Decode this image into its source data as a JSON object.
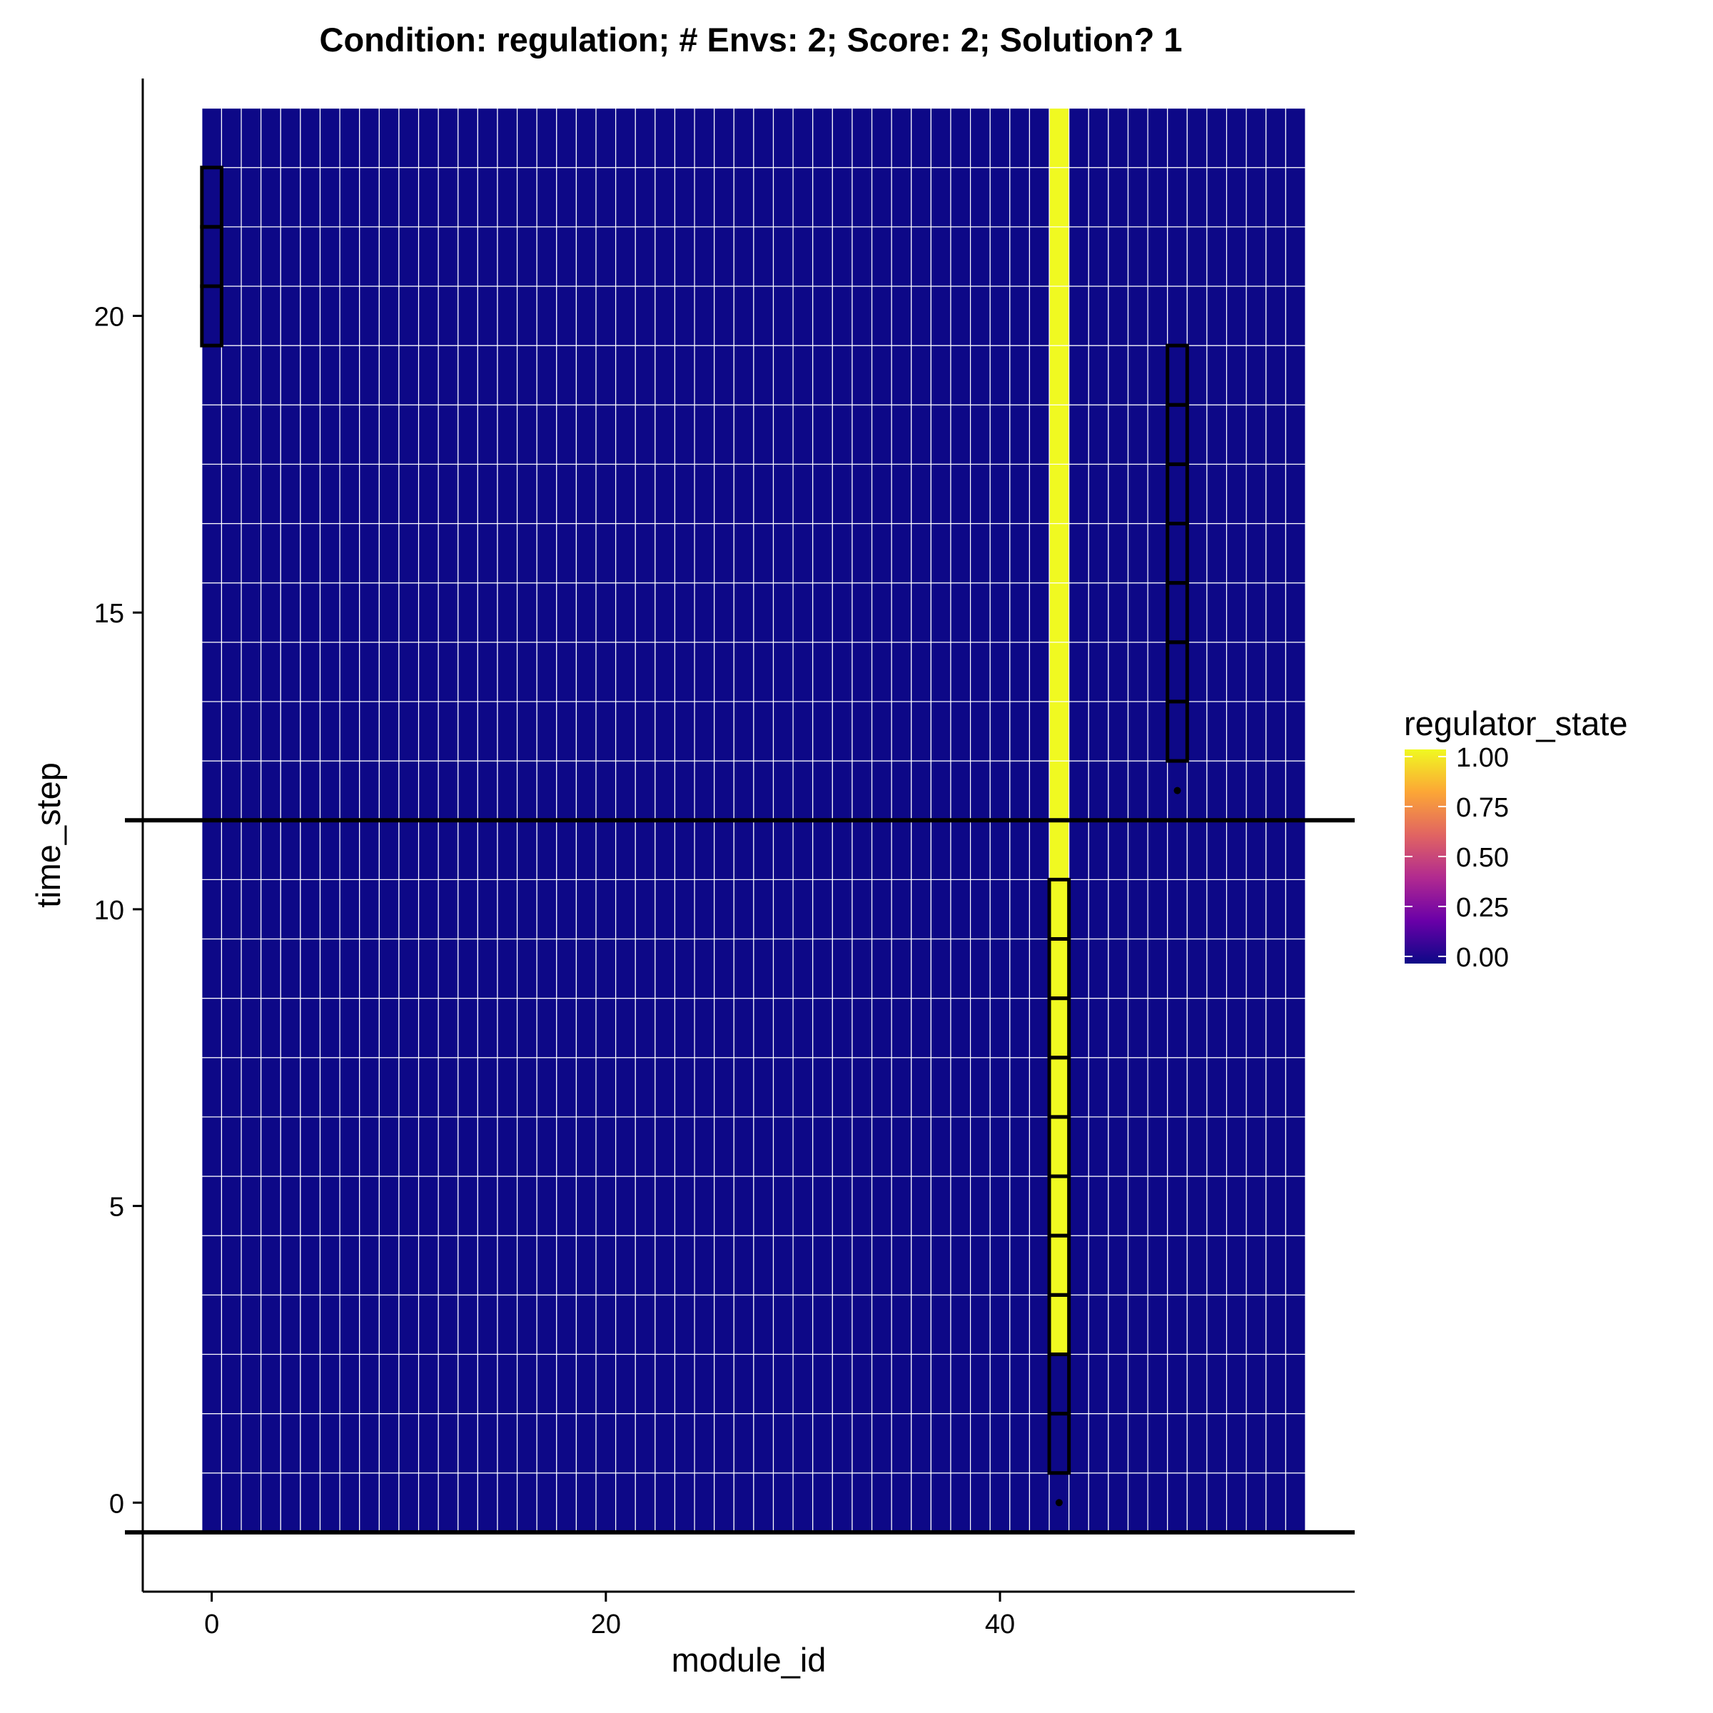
{
  "chart_data": {
    "type": "heatmap",
    "title": "Condition: regulation; # Envs: 2; Score: 2; Solution? 1",
    "xlabel": "module_id",
    "ylabel": "time_step",
    "xlim": [
      -3.5,
      58
    ],
    "ylim": [
      -1.5,
      24
    ],
    "x_ticks": [
      0,
      20,
      40
    ],
    "y_ticks": [
      0,
      5,
      10,
      15,
      20
    ],
    "module_ids": [
      0,
      55
    ],
    "time_steps": [
      0,
      23
    ],
    "default_state": 0,
    "active_cells": [
      {
        "module_id": 43,
        "time_steps": [
          3,
          23
        ],
        "regulator_state": 1
      }
    ],
    "highlighted_cells": [
      {
        "module_id": 0,
        "time_steps": [
          20,
          22
        ]
      },
      {
        "module_id": 49,
        "time_steps": [
          13,
          19
        ]
      },
      {
        "module_id": 43,
        "time_steps": [
          1,
          10
        ]
      }
    ],
    "points": [
      {
        "module_id": 49,
        "time_step": 12
      },
      {
        "module_id": 43,
        "time_step": 0
      }
    ],
    "hlines": [
      11.5,
      -0.5
    ],
    "legend": {
      "title": "regulator_state",
      "ticks": [
        "1.00",
        "0.75",
        "0.50",
        "0.25",
        "0.00"
      ],
      "position": "right"
    },
    "colors": {
      "low": "#0d0887",
      "high": "#f0f921",
      "gradient": [
        "#f0f921",
        "#fca636",
        "#e16462",
        "#b12a90",
        "#6a00a8",
        "#0d0887"
      ],
      "tile_border": "#ffffff",
      "highlight": "#000000"
    }
  }
}
